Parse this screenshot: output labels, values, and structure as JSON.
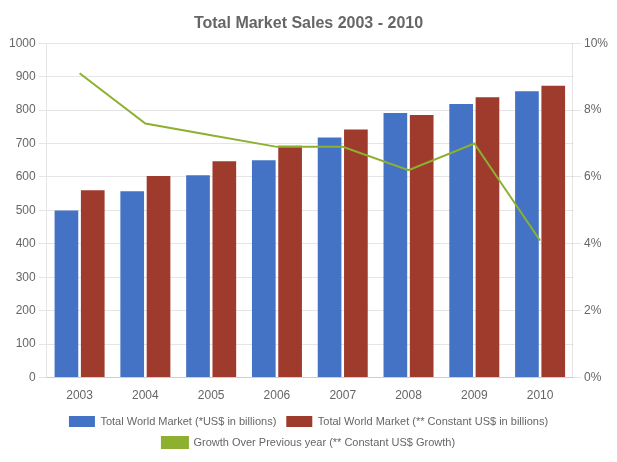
{
  "chart_data": {
    "type": "bar",
    "title": "Total Market Sales 2003 - 2010",
    "categories": [
      "2003",
      "2004",
      "2005",
      "2006",
      "2007",
      "2008",
      "2009",
      "2010"
    ],
    "series": [
      {
        "name": "Total World Market (*US$ in billions)",
        "color": "#4472C4",
        "values": [
          500,
          557,
          605,
          650,
          718,
          791,
          818,
          856
        ]
      },
      {
        "name": "Total World Market (** Constant US$ in billions)",
        "color": "#9E3B2C",
        "values": [
          560,
          603,
          647,
          693,
          742,
          785,
          838,
          873
        ]
      },
      {
        "name": "Growth Over Previous year (** Constant US$ Growth)",
        "type": "line",
        "axis": "y2",
        "color": "#8DB030",
        "values": [
          9.1,
          7.6,
          7.25,
          6.9,
          6.9,
          6.2,
          7.0,
          4.1
        ]
      }
    ],
    "ylim": [
      0,
      1000
    ],
    "yticks": [
      0,
      100,
      200,
      300,
      400,
      500,
      600,
      700,
      800,
      900,
      1000
    ],
    "y2lim": [
      0,
      10
    ],
    "y2ticks": [
      {
        "value": 0,
        "label": "0%"
      },
      {
        "value": 2,
        "label": "2%"
      },
      {
        "value": 4,
        "label": "4%"
      },
      {
        "value": 6,
        "label": "6%"
      },
      {
        "value": 8,
        "label": "8%"
      },
      {
        "value": 10,
        "label": "10%"
      }
    ],
    "grid": true,
    "legend": "bottom"
  }
}
